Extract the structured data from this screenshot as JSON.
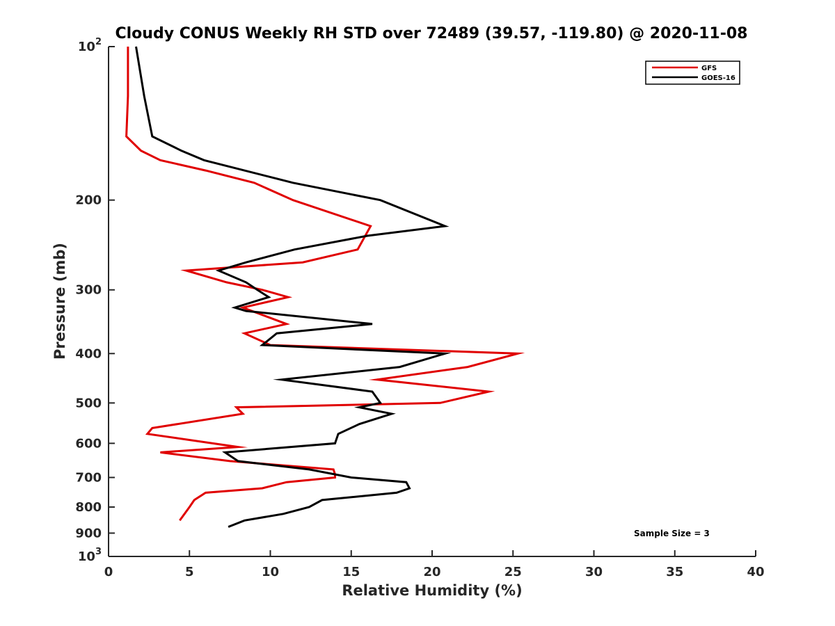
{
  "chart_data": {
    "type": "line",
    "title": "Cloudy CONUS Weekly RH STD over 72489 (39.57, -119.80) @ 2020-11-08",
    "xlabel": "Relative Humidity (%)",
    "ylabel": "Pressure (mb)",
    "xlim": [
      0,
      40
    ],
    "ylim": [
      100,
      1000
    ],
    "y_scale": "log",
    "y_reversed": true,
    "grid": false,
    "legend_position": "top-right",
    "x_ticks": [
      {
        "value": 0,
        "label": "0"
      },
      {
        "value": 5,
        "label": "5"
      },
      {
        "value": 10,
        "label": "10"
      },
      {
        "value": 15,
        "label": "15"
      },
      {
        "value": 20,
        "label": "20"
      },
      {
        "value": 25,
        "label": "25"
      },
      {
        "value": 30,
        "label": "30"
      },
      {
        "value": 35,
        "label": "35"
      },
      {
        "value": 40,
        "label": "40"
      }
    ],
    "y_ticks": [
      {
        "value": 100,
        "label": "10",
        "sup": "2"
      },
      {
        "value": 200,
        "label": "200"
      },
      {
        "value": 300,
        "label": "300"
      },
      {
        "value": 400,
        "label": "400"
      },
      {
        "value": 500,
        "label": "500"
      },
      {
        "value": 600,
        "label": "600"
      },
      {
        "value": 700,
        "label": "700"
      },
      {
        "value": 800,
        "label": "800"
      },
      {
        "value": 900,
        "label": "900"
      },
      {
        "value": 1000,
        "label": "10",
        "sup": "3"
      }
    ],
    "annotation": "Sample Size = 3",
    "series": [
      {
        "name": "GFS",
        "color": "#e00000",
        "points": [
          {
            "p": 100,
            "rh": 1.2
          },
          {
            "p": 125,
            "rh": 1.2
          },
          {
            "p": 150,
            "rh": 1.1
          },
          {
            "p": 160,
            "rh": 2.0
          },
          {
            "p": 167,
            "rh": 3.2
          },
          {
            "p": 175,
            "rh": 6.0
          },
          {
            "p": 185,
            "rh": 9.0
          },
          {
            "p": 200,
            "rh": 11.4
          },
          {
            "p": 225,
            "rh": 16.2
          },
          {
            "p": 250,
            "rh": 15.4
          },
          {
            "p": 265,
            "rh": 12.0
          },
          {
            "p": 275,
            "rh": 4.8
          },
          {
            "p": 290,
            "rh": 7.3
          },
          {
            "p": 300,
            "rh": 9.5
          },
          {
            "p": 310,
            "rh": 11.1
          },
          {
            "p": 325,
            "rh": 8.3
          },
          {
            "p": 350,
            "rh": 11.0
          },
          {
            "p": 365,
            "rh": 8.4
          },
          {
            "p": 385,
            "rh": 10.0
          },
          {
            "p": 400,
            "rh": 25.3
          },
          {
            "p": 425,
            "rh": 22.2
          },
          {
            "p": 450,
            "rh": 16.6
          },
          {
            "p": 475,
            "rh": 23.5
          },
          {
            "p": 500,
            "rh": 20.5
          },
          {
            "p": 510,
            "rh": 7.9
          },
          {
            "p": 525,
            "rh": 8.3
          },
          {
            "p": 560,
            "rh": 2.7
          },
          {
            "p": 575,
            "rh": 2.4
          },
          {
            "p": 610,
            "rh": 8.0
          },
          {
            "p": 625,
            "rh": 3.2
          },
          {
            "p": 650,
            "rh": 7.5
          },
          {
            "p": 675,
            "rh": 13.9
          },
          {
            "p": 690,
            "rh": 14.0
          },
          {
            "p": 700,
            "rh": 14.0
          },
          {
            "p": 715,
            "rh": 11.0
          },
          {
            "p": 735,
            "rh": 9.5
          },
          {
            "p": 750,
            "rh": 6.0
          },
          {
            "p": 775,
            "rh": 5.3
          },
          {
            "p": 800,
            "rh": 5.0
          },
          {
            "p": 850,
            "rh": 4.4
          }
        ]
      },
      {
        "name": "GOES-16",
        "color": "#000000",
        "points": [
          {
            "p": 100,
            "rh": 1.7
          },
          {
            "p": 125,
            "rh": 2.2
          },
          {
            "p": 150,
            "rh": 2.7
          },
          {
            "p": 160,
            "rh": 4.5
          },
          {
            "p": 167,
            "rh": 5.9
          },
          {
            "p": 185,
            "rh": 11.4
          },
          {
            "p": 200,
            "rh": 16.8
          },
          {
            "p": 225,
            "rh": 20.8
          },
          {
            "p": 235,
            "rh": 16.0
          },
          {
            "p": 250,
            "rh": 11.5
          },
          {
            "p": 265,
            "rh": 8.5
          },
          {
            "p": 275,
            "rh": 6.8
          },
          {
            "p": 290,
            "rh": 8.5
          },
          {
            "p": 300,
            "rh": 9.2
          },
          {
            "p": 310,
            "rh": 9.9
          },
          {
            "p": 325,
            "rh": 7.8
          },
          {
            "p": 330,
            "rh": 8.5
          },
          {
            "p": 350,
            "rh": 16.3
          },
          {
            "p": 365,
            "rh": 10.4
          },
          {
            "p": 385,
            "rh": 9.5
          },
          {
            "p": 400,
            "rh": 20.8
          },
          {
            "p": 425,
            "rh": 18.0
          },
          {
            "p": 450,
            "rh": 10.7
          },
          {
            "p": 475,
            "rh": 16.3
          },
          {
            "p": 500,
            "rh": 16.8
          },
          {
            "p": 510,
            "rh": 15.5
          },
          {
            "p": 525,
            "rh": 17.5
          },
          {
            "p": 550,
            "rh": 15.5
          },
          {
            "p": 575,
            "rh": 14.2
          },
          {
            "p": 600,
            "rh": 14.0
          },
          {
            "p": 625,
            "rh": 7.2
          },
          {
            "p": 650,
            "rh": 8.0
          },
          {
            "p": 675,
            "rh": 12.4
          },
          {
            "p": 700,
            "rh": 15.0
          },
          {
            "p": 715,
            "rh": 18.4
          },
          {
            "p": 735,
            "rh": 18.6
          },
          {
            "p": 750,
            "rh": 17.8
          },
          {
            "p": 775,
            "rh": 13.2
          },
          {
            "p": 800,
            "rh": 12.4
          },
          {
            "p": 825,
            "rh": 10.8
          },
          {
            "p": 850,
            "rh": 8.4
          },
          {
            "p": 875,
            "rh": 7.4
          }
        ]
      }
    ]
  }
}
